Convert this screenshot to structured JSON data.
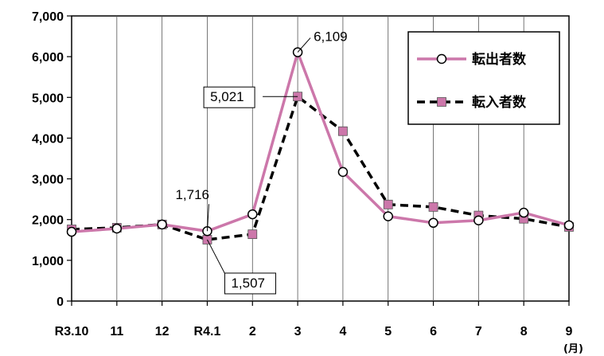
{
  "chart_data": {
    "type": "line",
    "x_unit_label": "(月)",
    "categories": [
      "R3.10",
      "11",
      "12",
      "R4.1",
      "2",
      "3",
      "4",
      "5",
      "6",
      "7",
      "8",
      "9"
    ],
    "ylim": [
      0,
      7000
    ],
    "y_ticks": [
      0,
      1000,
      2000,
      3000,
      4000,
      5000,
      6000,
      7000
    ],
    "y_tick_labels": [
      "0",
      "1,000",
      "2,000",
      "3,000",
      "4,000",
      "5,000",
      "6,000",
      "7,000"
    ],
    "grid": "vertical",
    "legend_position": "top-right",
    "series": [
      {
        "name": "転出者数",
        "color": "#cc77aa",
        "line_style": "solid",
        "marker": "circle",
        "values": [
          1700,
          1780,
          1880,
          1716,
          2130,
          6109,
          3170,
          2080,
          1920,
          1980,
          2170,
          1860
        ]
      },
      {
        "name": "転入者数",
        "color": "#000000",
        "marker_color": "#cc77aa",
        "line_style": "dashed",
        "marker": "square",
        "values": [
          1760,
          1800,
          1880,
          1507,
          1640,
          5021,
          4170,
          2370,
          2310,
          2100,
          2020,
          1820
        ]
      }
    ],
    "annotations": [
      {
        "text": "6,109",
        "category": "3",
        "series": 0,
        "boxed": false
      },
      {
        "text": "5,021",
        "category": "3",
        "series": 1,
        "boxed": true
      },
      {
        "text": "1,716",
        "category": "R4.1",
        "series": 0,
        "boxed": false
      },
      {
        "text": "1,507",
        "category": "R4.1",
        "series": 1,
        "boxed": true
      }
    ]
  }
}
